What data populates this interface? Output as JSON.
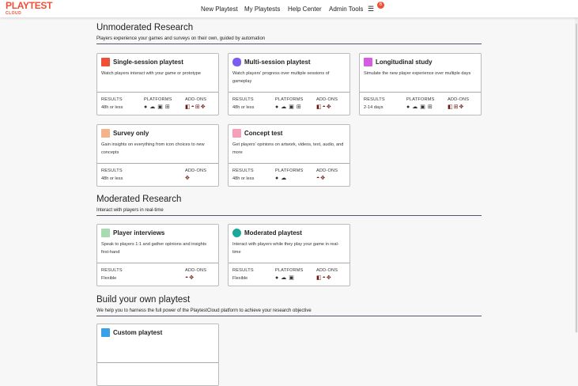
{
  "brand": {
    "name": "PLAYTEST",
    "sub": "CLOUD",
    "color": "#f04e37"
  },
  "nav": [
    {
      "label": "New Playtest"
    },
    {
      "label": "My Playtests"
    },
    {
      "label": "Help Center"
    },
    {
      "label": "Admin Tools"
    }
  ],
  "menu": {
    "icon": "hamburger-icon",
    "badge": "6"
  },
  "labels": {
    "results": "RESULTS",
    "platforms": "PLATFORMS",
    "addons": "ADD-ONS"
  },
  "sections": [
    {
      "title": "Unmoderated Research",
      "subtitle": "Players experience your games and surveys on their own, guided by automation"
    },
    {
      "title": "Moderated Research",
      "subtitle": "Interact with players in real-time"
    },
    {
      "title": "Build your own playtest",
      "subtitle": "We help you to harness the full power of the PlaytestCloud platform to achieve your research objective"
    }
  ],
  "cards": [
    {
      "title": "Single-session playtest",
      "desc": "Watch players interact with your game or prototype",
      "results": "48h or less",
      "platforms": [
        "apple",
        "android",
        "html5",
        "windows"
      ],
      "addons": [
        "split",
        "face",
        "grid",
        "dpad"
      ],
      "icon": "single-session-icon",
      "color": "#f04e37"
    },
    {
      "title": "Multi-session playtest",
      "desc": "Watch players' progress over multiple sessions of gameplay",
      "results": "48h or less",
      "platforms": [
        "apple",
        "android",
        "html5",
        "windows"
      ],
      "addons": [
        "split",
        "face",
        "dpad"
      ],
      "icon": "multi-session-icon",
      "color": "#7b5cf0"
    },
    {
      "title": "Longitudinal study",
      "desc": "Simulate the new player experience over multiple days",
      "results": "2-14 days",
      "platforms": [
        "apple",
        "android",
        "html5",
        "windows"
      ],
      "addons": [
        "split",
        "grid",
        "dpad"
      ],
      "icon": "longitudinal-icon",
      "color": "#d45ce0"
    },
    {
      "title": "Survey only",
      "desc": "Gain insights on everything from icon choices to new concepts",
      "results": "48h or less",
      "platforms": [],
      "addons": [
        "dpad"
      ],
      "icon": "survey-icon",
      "color": "#f5b38a"
    },
    {
      "title": "Concept test",
      "desc": "Get players' opinions on artwork, videos, text, audio, and more",
      "results": "48h or less",
      "platforms": [
        "apple",
        "android"
      ],
      "addons": [
        "face",
        "dpad"
      ],
      "icon": "concept-icon",
      "color": "#f5a0b8"
    },
    {
      "title": "Player interviews",
      "desc": "Speak to players 1:1 and gather opinions and insights first-hand",
      "results": "Flexible",
      "platforms": [],
      "addons": [
        "face",
        "dpad"
      ],
      "icon": "interview-icon",
      "color": "#a8dcb0"
    },
    {
      "title": "Moderated playtest",
      "desc": "Interact with players while they play your game in real-time",
      "results": "Flexible",
      "platforms": [
        "apple",
        "android",
        "html5"
      ],
      "addons": [
        "split",
        "face",
        "dpad"
      ],
      "icon": "moderated-icon",
      "color": "#1aa89a"
    },
    {
      "title": "Custom playtest",
      "desc": "",
      "results": "",
      "platforms": [],
      "addons": [],
      "icon": "custom-icon",
      "color": "#3aa0e8"
    }
  ]
}
